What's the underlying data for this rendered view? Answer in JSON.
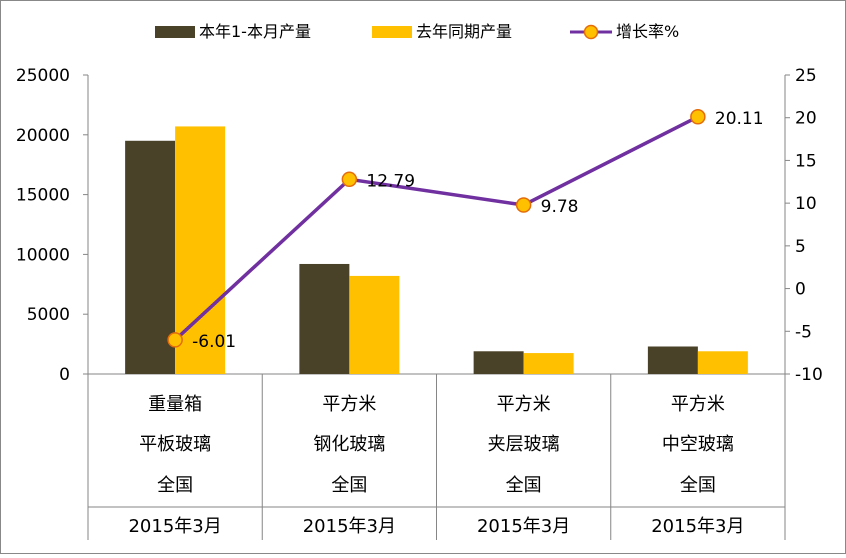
{
  "chart_data": {
    "type": "bar",
    "categories": [
      {
        "unit": "重量箱",
        "product": "平板玻璃",
        "region": "全国",
        "period": "2015年3月"
      },
      {
        "unit": "平方米",
        "product": "钢化玻璃",
        "region": "全国",
        "period": "2015年3月"
      },
      {
        "unit": "平方米",
        "product": "夹层玻璃",
        "region": "全国",
        "period": "2015年3月"
      },
      {
        "unit": "平方米",
        "product": "中空玻璃",
        "region": "全国",
        "period": "2015年3月"
      }
    ],
    "series": [
      {
        "name": "本年1-本月产量",
        "type": "bar",
        "axis": "left",
        "color": "#4A4228",
        "values": [
          19500,
          9200,
          1900,
          2300
        ]
      },
      {
        "name": "去年同期产量",
        "type": "bar",
        "axis": "left",
        "color": "#FFC000",
        "values": [
          20700,
          8200,
          1750,
          1900
        ]
      },
      {
        "name": "增长率%",
        "type": "line",
        "axis": "right",
        "color": "#7030A0",
        "marker_color": "#FFC000",
        "values": [
          -6.01,
          12.79,
          9.78,
          20.11
        ]
      }
    ],
    "data_labels": [
      "-6.01",
      "12.79",
      "9.78",
      "20.11"
    ],
    "y_left": {
      "min": 0,
      "max": 25000,
      "ticks": [
        "25000",
        "20000",
        "15000",
        "10000",
        "5000",
        "0"
      ]
    },
    "y_right": {
      "min": -10,
      "max": 25,
      "ticks": [
        "25",
        "20",
        "15",
        "10",
        "5",
        "0",
        "-5",
        "-10"
      ]
    },
    "legend": "top",
    "grid": false
  }
}
